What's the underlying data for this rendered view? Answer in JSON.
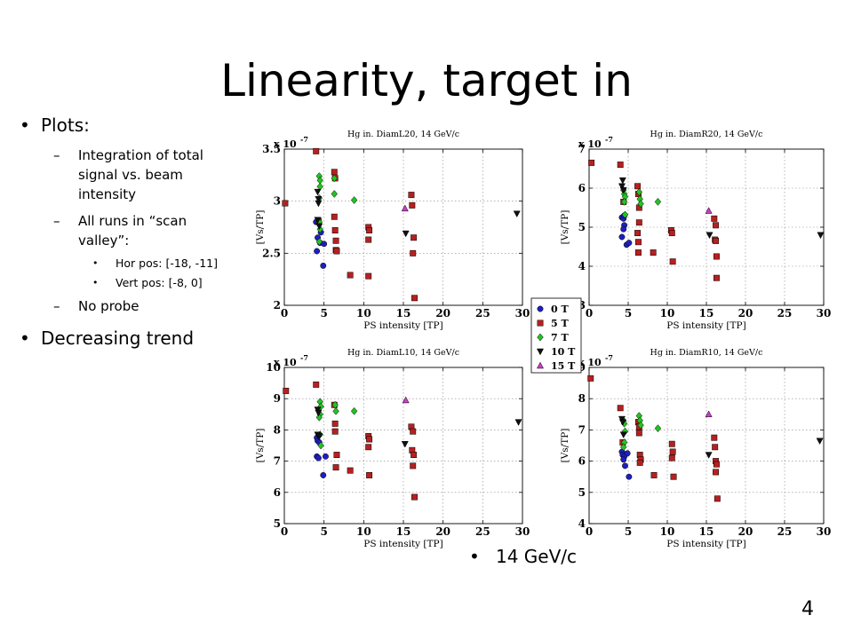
{
  "slide": {
    "title": "Linearity, target in",
    "page_number": "4",
    "bullets": {
      "plots": "Plots:",
      "integration": "Integration of total signal vs. beam intensity",
      "all_runs": "All runs in “scan valley”:",
      "hor_pos": "Hor pos: [-18, -11]",
      "vert_pos": "Vert pos: [-8, 0]",
      "no_probe": "No probe",
      "trend": "Decreasing trend"
    },
    "note": "14 GeV/c"
  },
  "legend": {
    "entries": [
      {
        "label": "0 T",
        "marker": "circle",
        "color": "#1f1fbf"
      },
      {
        "label": "5 T",
        "marker": "square",
        "color": "#b82020"
      },
      {
        "label": "7 T",
        "marker": "diamond",
        "color": "#22c422"
      },
      {
        "label": "10 T",
        "marker": "triangle-down",
        "color": "#111111"
      },
      {
        "label": "15 T",
        "marker": "triangle-up",
        "color": "#c83ec8"
      }
    ]
  },
  "chart_data": [
    {
      "type": "scatter",
      "title": "Hg in. DiamL20, 14 GeV/c",
      "xlabel": "PS intensity [TP]",
      "ylabel": "[Vs/TP]",
      "exponent_label": "x 10",
      "exponent_sup": "-7",
      "xlim": [
        0,
        30
      ],
      "ylim": [
        2,
        3.5
      ],
      "xticks": [
        0,
        5,
        10,
        15,
        20,
        25,
        30
      ],
      "yticks": [
        2,
        2.5,
        3,
        3.5
      ],
      "grid": true,
      "series": [
        {
          "name": "0 T",
          "points": [
            [
              4.0,
              2.8
            ],
            [
              4.2,
              2.65
            ],
            [
              4.5,
              2.6
            ],
            [
              4.1,
              2.52
            ],
            [
              4.6,
              2.7
            ],
            [
              5.0,
              2.59
            ],
            [
              4.9,
              2.38
            ]
          ]
        },
        {
          "name": "5 T",
          "points": [
            [
              0.1,
              2.98
            ],
            [
              4.0,
              3.48
            ],
            [
              4.3,
              2.81
            ],
            [
              6.3,
              3.28
            ],
            [
              6.4,
              3.22
            ],
            [
              6.3,
              2.85
            ],
            [
              6.4,
              2.72
            ],
            [
              6.5,
              2.62
            ],
            [
              6.5,
              2.53
            ],
            [
              6.6,
              2.52
            ],
            [
              8.3,
              2.29
            ],
            [
              10.6,
              2.75
            ],
            [
              10.7,
              2.72
            ],
            [
              10.6,
              2.63
            ],
            [
              10.6,
              2.28
            ],
            [
              16.0,
              3.06
            ],
            [
              16.1,
              2.96
            ],
            [
              16.3,
              2.65
            ],
            [
              16.2,
              2.5
            ],
            [
              16.4,
              2.07
            ]
          ]
        },
        {
          "name": "7 T",
          "points": [
            [
              4.4,
              3.24
            ],
            [
              4.5,
              3.2
            ],
            [
              4.5,
              3.14
            ],
            [
              4.4,
              3.03
            ],
            [
              4.4,
              2.8
            ],
            [
              4.5,
              2.73
            ],
            [
              4.4,
              2.61
            ],
            [
              6.3,
              3.22
            ],
            [
              6.3,
              3.07
            ],
            [
              8.8,
              3.01
            ]
          ]
        },
        {
          "name": "10 T",
          "points": [
            [
              4.2,
              3.09
            ],
            [
              4.3,
              3.02
            ],
            [
              4.3,
              2.98
            ],
            [
              4.2,
              2.82
            ],
            [
              4.4,
              2.76
            ],
            [
              15.3,
              2.69
            ],
            [
              29.3,
              2.88
            ]
          ]
        },
        {
          "name": "15 T",
          "points": [
            [
              15.2,
              2.93
            ]
          ]
        }
      ]
    },
    {
      "type": "scatter",
      "title": "Hg in. DiamR20, 14 GeV/c",
      "xlabel": "PS intensity [TP]",
      "ylabel": "[Vs/TP]",
      "exponent_label": "x 10",
      "exponent_sup": "-7",
      "xlim": [
        0,
        30
      ],
      "ylim": [
        3,
        7
      ],
      "xticks": [
        0,
        5,
        10,
        15,
        20,
        25,
        30
      ],
      "yticks": [
        3,
        4,
        5,
        6,
        7
      ],
      "grid": true,
      "series": [
        {
          "name": "0 T",
          "points": [
            [
              4.2,
              5.25
            ],
            [
              4.4,
              5.22
            ],
            [
              4.5,
              5.3
            ],
            [
              4.5,
              5.05
            ],
            [
              4.4,
              4.95
            ],
            [
              4.2,
              4.75
            ],
            [
              4.8,
              4.55
            ],
            [
              5.1,
              4.6
            ]
          ]
        },
        {
          "name": "5 T",
          "points": [
            [
              0.3,
              6.65
            ],
            [
              4.0,
              6.6
            ],
            [
              4.4,
              5.65
            ],
            [
              6.2,
              6.05
            ],
            [
              6.3,
              5.85
            ],
            [
              6.4,
              5.5
            ],
            [
              6.4,
              5.12
            ],
            [
              6.2,
              4.85
            ],
            [
              6.3,
              4.62
            ],
            [
              6.3,
              4.35
            ],
            [
              8.2,
              4.35
            ],
            [
              10.5,
              4.92
            ],
            [
              10.6,
              4.85
            ],
            [
              10.7,
              4.12
            ],
            [
              16.0,
              5.22
            ],
            [
              16.2,
              5.05
            ],
            [
              16.1,
              4.68
            ],
            [
              16.2,
              4.65
            ],
            [
              16.3,
              4.25
            ],
            [
              16.3,
              3.7
            ]
          ]
        },
        {
          "name": "7 T",
          "points": [
            [
              4.4,
              5.95
            ],
            [
              4.5,
              5.85
            ],
            [
              4.6,
              5.78
            ],
            [
              4.5,
              5.65
            ],
            [
              4.6,
              5.32
            ],
            [
              6.4,
              5.9
            ],
            [
              6.5,
              5.72
            ],
            [
              6.6,
              5.6
            ],
            [
              8.8,
              5.65
            ]
          ]
        },
        {
          "name": "10 T",
          "points": [
            [
              4.3,
              6.2
            ],
            [
              4.2,
              6.05
            ],
            [
              4.4,
              5.95
            ],
            [
              15.4,
              4.8
            ],
            [
              29.6,
              4.8
            ]
          ]
        },
        {
          "name": "15 T",
          "points": [
            [
              15.3,
              5.42
            ]
          ]
        }
      ]
    },
    {
      "type": "scatter",
      "title": "Hg in. DiamL10, 14 GeV/c",
      "xlabel": "PS intensity [TP]",
      "ylabel": "[Vs/TP]",
      "exponent_label": "x 10",
      "exponent_sup": "-7",
      "xlim": [
        0,
        30
      ],
      "ylim": [
        5,
        10
      ],
      "xticks": [
        0,
        5,
        10,
        15,
        20,
        25,
        30
      ],
      "yticks": [
        5,
        6,
        7,
        8,
        9,
        10
      ],
      "grid": true,
      "series": [
        {
          "name": "0 T",
          "points": [
            [
              4.1,
              7.75
            ],
            [
              4.2,
              7.65
            ],
            [
              4.4,
              7.6
            ],
            [
              4.1,
              7.15
            ],
            [
              4.3,
              7.1
            ],
            [
              5.2,
              7.15
            ],
            [
              4.9,
              6.55
            ]
          ]
        },
        {
          "name": "5 T",
          "points": [
            [
              0.2,
              9.25
            ],
            [
              4.0,
              9.45
            ],
            [
              6.3,
              8.8
            ],
            [
              6.4,
              8.2
            ],
            [
              6.4,
              7.95
            ],
            [
              6.6,
              7.2
            ],
            [
              6.5,
              6.8
            ],
            [
              8.3,
              6.7
            ],
            [
              10.6,
              7.8
            ],
            [
              10.7,
              7.7
            ],
            [
              10.6,
              7.45
            ],
            [
              10.7,
              6.55
            ],
            [
              16.0,
              8.1
            ],
            [
              16.2,
              7.95
            ],
            [
              16.1,
              7.35
            ],
            [
              16.3,
              7.2
            ],
            [
              16.2,
              6.85
            ],
            [
              16.4,
              5.85
            ]
          ]
        },
        {
          "name": "7 T",
          "points": [
            [
              4.5,
              8.9
            ],
            [
              4.6,
              8.75
            ],
            [
              4.5,
              8.5
            ],
            [
              4.4,
              8.4
            ],
            [
              4.5,
              7.85
            ],
            [
              4.6,
              7.5
            ],
            [
              6.4,
              8.8
            ],
            [
              6.5,
              8.6
            ],
            [
              8.8,
              8.6
            ]
          ]
        },
        {
          "name": "10 T",
          "points": [
            [
              4.2,
              8.65
            ],
            [
              4.3,
              8.55
            ],
            [
              4.2,
              7.85
            ],
            [
              4.4,
              7.8
            ],
            [
              15.2,
              7.55
            ],
            [
              29.5,
              8.25
            ]
          ]
        },
        {
          "name": "15 T",
          "points": [
            [
              15.3,
              8.95
            ]
          ]
        }
      ]
    },
    {
      "type": "scatter",
      "title": "Hg in. DiamR10, 14 GeV/c",
      "xlabel": "PS intensity [TP]",
      "ylabel": "[Vs/TP]",
      "exponent_label": "x 10",
      "exponent_sup": "-7",
      "xlim": [
        0,
        30
      ],
      "ylim": [
        4,
        9
      ],
      "xticks": [
        0,
        5,
        10,
        15,
        20,
        25,
        30
      ],
      "yticks": [
        4,
        5,
        6,
        7,
        8,
        9
      ],
      "grid": true,
      "series": [
        {
          "name": "0 T",
          "points": [
            [
              4.2,
              6.3
            ],
            [
              4.3,
              6.2
            ],
            [
              4.5,
              6.15
            ],
            [
              4.4,
              6.05
            ],
            [
              4.6,
              5.85
            ],
            [
              4.9,
              6.25
            ],
            [
              5.1,
              5.5
            ]
          ]
        },
        {
          "name": "5 T",
          "points": [
            [
              0.2,
              8.65
            ],
            [
              4.0,
              7.7
            ],
            [
              4.3,
              6.6
            ],
            [
              6.3,
              7.25
            ],
            [
              6.4,
              7.1
            ],
            [
              6.4,
              6.9
            ],
            [
              6.5,
              6.2
            ],
            [
              6.6,
              6.05
            ],
            [
              6.5,
              5.95
            ],
            [
              8.3,
              5.55
            ],
            [
              10.6,
              6.55
            ],
            [
              10.7,
              6.3
            ],
            [
              10.6,
              6.1
            ],
            [
              10.8,
              5.5
            ],
            [
              16.0,
              6.75
            ],
            [
              16.1,
              6.45
            ],
            [
              16.2,
              6.0
            ],
            [
              16.3,
              5.9
            ],
            [
              16.2,
              5.65
            ],
            [
              16.4,
              4.8
            ]
          ]
        },
        {
          "name": "7 T",
          "points": [
            [
              4.4,
              7.3
            ],
            [
              4.5,
              7.2
            ],
            [
              4.6,
              6.95
            ],
            [
              4.5,
              6.6
            ],
            [
              4.4,
              6.45
            ],
            [
              6.4,
              7.45
            ],
            [
              6.5,
              7.3
            ],
            [
              6.6,
              7.15
            ],
            [
              8.8,
              7.05
            ]
          ]
        },
        {
          "name": "10 T",
          "points": [
            [
              4.2,
              7.35
            ],
            [
              4.3,
              7.25
            ],
            [
              4.4,
              6.85
            ],
            [
              15.3,
              6.2
            ],
            [
              29.5,
              6.65
            ]
          ]
        },
        {
          "name": "15 T",
          "points": [
            [
              15.3,
              7.5
            ]
          ]
        }
      ]
    }
  ]
}
